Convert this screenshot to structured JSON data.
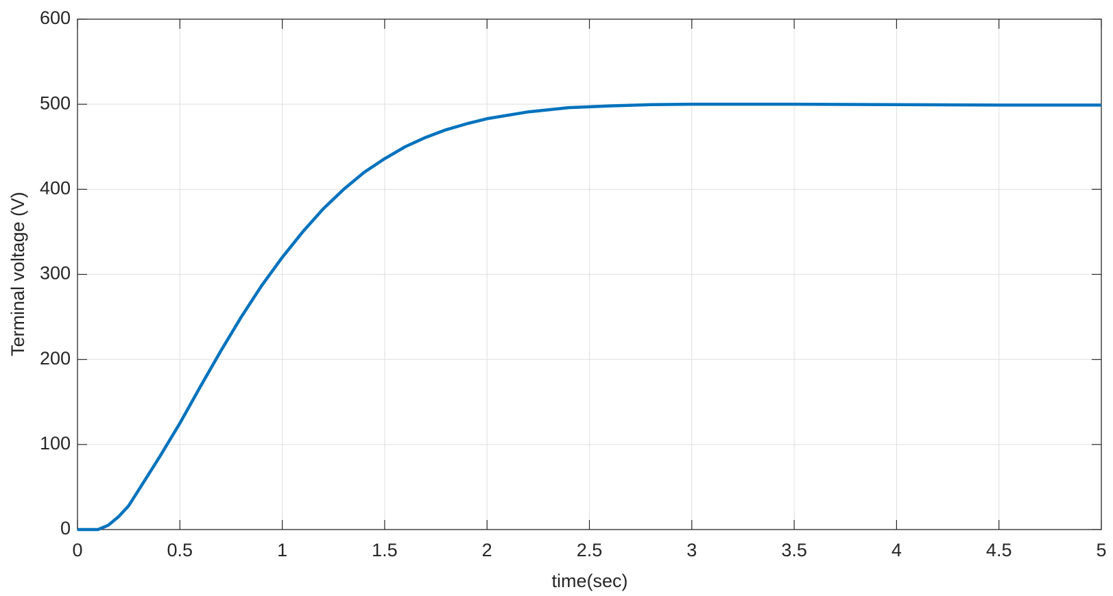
{
  "chart_data": {
    "type": "line",
    "xlabel": "time(sec)",
    "ylabel": "Terminal voltage (V)",
    "x": [
      0,
      0.05,
      0.1,
      0.15,
      0.2,
      0.25,
      0.3,
      0.4,
      0.5,
      0.6,
      0.7,
      0.8,
      0.9,
      1.0,
      1.1,
      1.2,
      1.3,
      1.4,
      1.5,
      1.6,
      1.7,
      1.8,
      1.9,
      2.0,
      2.2,
      2.4,
      2.6,
      2.8,
      3.0,
      3.5,
      4.0,
      4.5,
      5.0
    ],
    "values": [
      0,
      0,
      0,
      5,
      15,
      28,
      47,
      85,
      125,
      168,
      210,
      250,
      287,
      320,
      350,
      377,
      400,
      420,
      436,
      450,
      461,
      470,
      477,
      483,
      491,
      496,
      498,
      499.5,
      500,
      500,
      499.5,
      499,
      499
    ],
    "color": "#0072bd",
    "xlim": [
      0,
      5
    ],
    "xticks": [
      0,
      0.5,
      1,
      1.5,
      2,
      2.5,
      3,
      3.5,
      4,
      4.5,
      5
    ],
    "ylim": [
      0,
      600
    ],
    "yticks": [
      0,
      100,
      200,
      300,
      400,
      500,
      600
    ],
    "grid": true
  }
}
